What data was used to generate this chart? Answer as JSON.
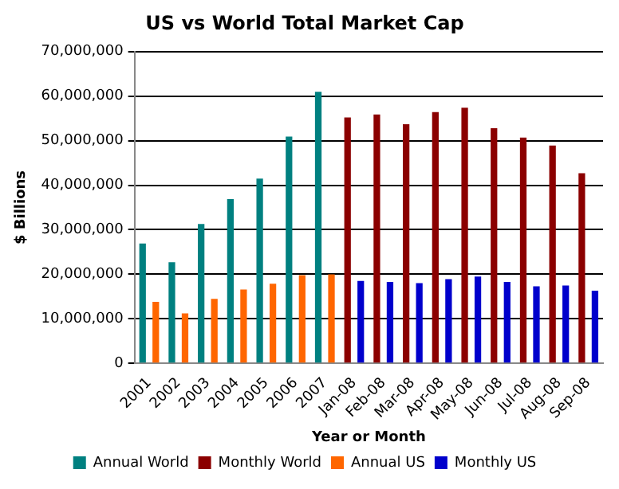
{
  "chart_data": {
    "type": "bar",
    "title": "US vs World Total Market Cap",
    "xlabel": "Year or Month",
    "ylabel": "$ Billions",
    "categories": [
      "2001",
      "2002",
      "2003",
      "2004",
      "2005",
      "2006",
      "2007",
      "Jan-08",
      "Feb-08",
      "Mar-08",
      "Apr-08",
      "May-08",
      "Jun-08",
      "Jul-08",
      "Aug-08",
      "Sep-08"
    ],
    "series": [
      {
        "name": "Annual World",
        "color": "#008080",
        "values": [
          26900000,
          22700000,
          31300000,
          36900000,
          41500000,
          50900000,
          61000000,
          null,
          null,
          null,
          null,
          null,
          null,
          null,
          null,
          null
        ]
      },
      {
        "name": "Monthly World",
        "color": "#8b0000",
        "values": [
          null,
          null,
          null,
          null,
          null,
          null,
          null,
          55200000,
          55900000,
          53700000,
          56400000,
          57400000,
          52800000,
          50700000,
          48900000,
          42700000
        ]
      },
      {
        "name": "Annual US",
        "color": "#ff6600",
        "values": [
          13800000,
          11200000,
          14500000,
          16600000,
          17900000,
          19800000,
          20000000,
          null,
          null,
          null,
          null,
          null,
          null,
          null,
          null,
          null
        ]
      },
      {
        "name": "Monthly US",
        "color": "#0000cc",
        "values": [
          null,
          null,
          null,
          null,
          null,
          null,
          null,
          18500000,
          18300000,
          18000000,
          18900000,
          19500000,
          18300000,
          17300000,
          17500000,
          16300000
        ]
      }
    ],
    "ylim": [
      0,
      70000000
    ],
    "yticks": [
      0,
      {
        "value": 10000000,
        "label": "10,000,000"
      },
      {
        "value": 20000000,
        "label": "20,000,000"
      },
      {
        "value": 30000000,
        "label": "30,000,000"
      },
      {
        "value": 40000000,
        "label": "40,000,000"
      },
      {
        "value": 50000000,
        "label": "50,000,000"
      },
      {
        "value": 60000000,
        "label": "60,000,000"
      },
      {
        "value": 70000000,
        "label": "70,000,000"
      }
    ],
    "grid": "y",
    "legend": "bottom"
  }
}
